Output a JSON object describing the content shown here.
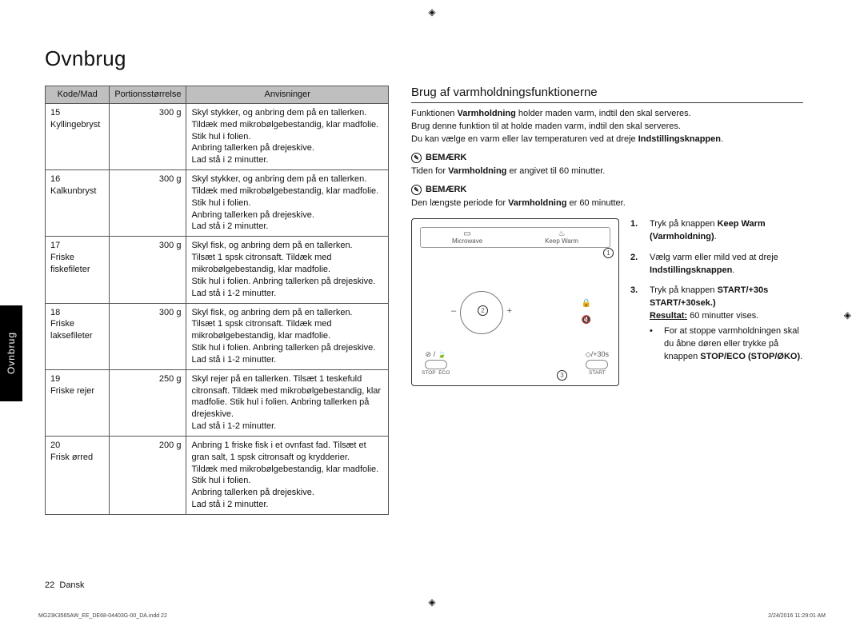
{
  "title": "Ovnbrug",
  "side_tab": "Ovnbrug",
  "registration_mark": "◈",
  "table": {
    "headers": [
      "Kode/Mad",
      "Portionsstørrelse",
      "Anvisninger"
    ],
    "rows": [
      {
        "code": "15",
        "food": "Kyllingebryst",
        "qty": "300 g",
        "instr": "Skyl stykker, og anbring dem på en tallerken.\nTildæk med mikrobølgebestandig, klar madfolie.\nStik hul i folien.\nAnbring tallerken på drejeskive.\nLad stå i 2 minutter."
      },
      {
        "code": "16",
        "food": "Kalkunbryst",
        "qty": "300 g",
        "instr": "Skyl stykker, og anbring dem på en tallerken.\nTildæk med mikrobølgebestandig, klar madfolie.\nStik hul i folien.\nAnbring tallerken på drejeskive.\nLad stå i 2 minutter."
      },
      {
        "code": "17",
        "food": "Friske fiskefileter",
        "qty": "300 g",
        "instr": "Skyl fisk, og anbring dem på en tallerken.\nTilsæt 1 spsk citronsaft. Tildæk med mikrobølgebestandig, klar madfolie.\nStik hul i folien. Anbring tallerken på drejeskive.\nLad stå i 1-2 minutter."
      },
      {
        "code": "18",
        "food": "Friske laksefileter",
        "qty": "300 g",
        "instr": "Skyl fisk, og anbring dem på en tallerken.\nTilsæt 1 spsk citronsaft. Tildæk med mikrobølgebestandig, klar madfolie.\nStik hul i folien. Anbring tallerken på drejeskive.\nLad stå i 1-2 minutter."
      },
      {
        "code": "19",
        "food": "Friske rejer",
        "qty": "250 g",
        "instr": "Skyl rejer på en tallerken. Tilsæt 1 teskefuld citronsaft. Tildæk med mikrobølgebestandig, klar madfolie. Stik hul i folien. Anbring tallerken på drejeskive.\nLad stå i 1-2 minutter."
      },
      {
        "code": "20",
        "food": "Frisk ørred",
        "qty": "200 g",
        "instr": "Anbring 1 friske fisk i et ovnfast fad. Tilsæt et gran salt, 1 spsk citronsaft og krydderier.\nTildæk med mikrobølgebestandig, klar madfolie.\nStik hul i folien.\nAnbring tallerken på drejeskive.\nLad stå i 2 minutter."
      }
    ]
  },
  "right": {
    "heading": "Brug af varmholdningsfunktionerne",
    "intro_l1_a": "Funktionen ",
    "intro_l1_b": "Varmholdning",
    "intro_l1_c": " holder maden varm, indtil den skal serveres.",
    "intro_l2": "Brug denne funktion til at holde maden varm, indtil den skal serveres.",
    "intro_l3_a": "Du kan vælge en varm eller lav temperaturen ved at dreje ",
    "intro_l3_b": "Indstillingsknappen",
    "intro_l3_c": ".",
    "note_label": "BEMÆRK",
    "note1_a": "Tiden for ",
    "note1_b": "Varmholdning",
    "note1_c": " er angivet til 60 minutter.",
    "note2_a": "Den længste periode for ",
    "note2_b": "Varmholdning",
    "note2_c": " er 60 minutter.",
    "panel": {
      "microwave": "Microwave",
      "keepwarm": "Keep Warm",
      "start30": "/+30s",
      "stop": "STOP",
      "eco": "ECO",
      "start": "START"
    },
    "steps": {
      "s1_a": "Tryk på knappen ",
      "s1_b": "Keep Warm (Varmholdning)",
      "s1_c": ".",
      "s2_a": "Vælg varm eller mild ved at dreje ",
      "s2_b": "Indstillingsknappen",
      "s2_c": ".",
      "s3_a": "Tryk på knappen ",
      "s3_b": "START/+30s START/+30sek.)",
      "s3_res_lbl": "Resultat:",
      "s3_res_txt": "  60 minutter vises.",
      "s3_bullet_a": "For at stoppe varmholdningen skal du åbne døren eller trykke på knappen ",
      "s3_bullet_b": "STOP/ECO (STOP/ØKO)",
      "s3_bullet_c": "."
    }
  },
  "footer_page": "22",
  "footer_lang": "Dansk",
  "print_left": "MG23K3565AW_EE_DE68-04403G-00_DA.indd   22",
  "print_right": "2/24/2016   11:29:01 AM"
}
